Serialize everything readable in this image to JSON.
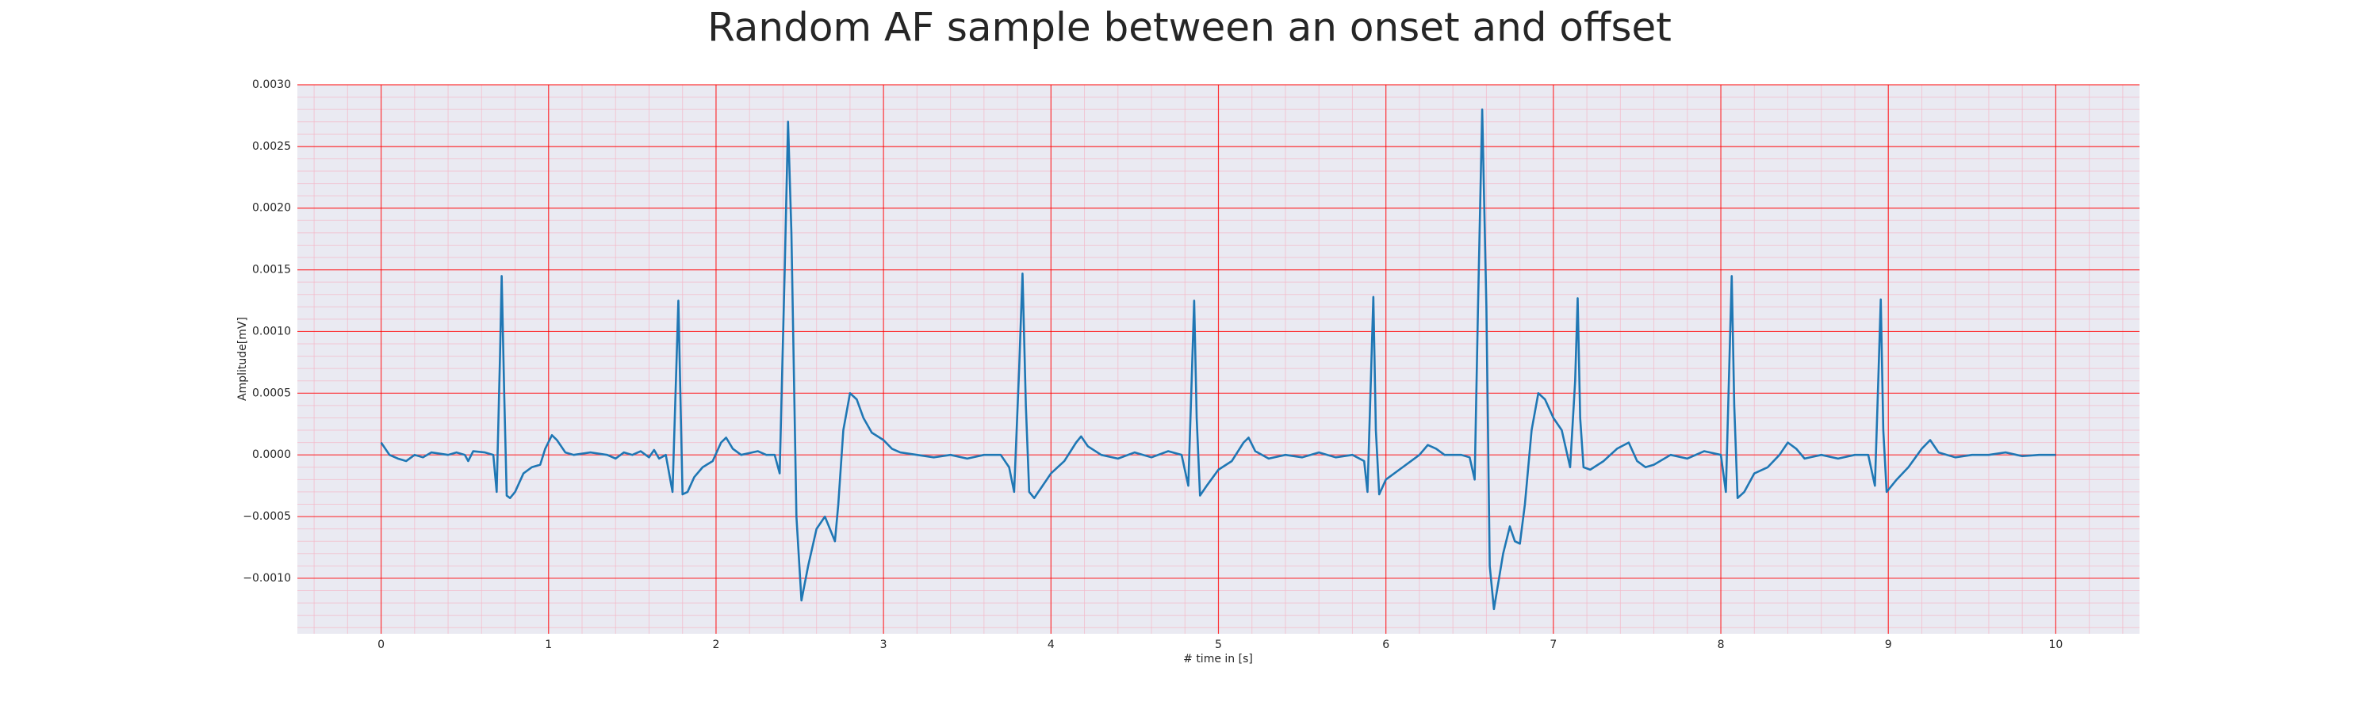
{
  "chart_data": {
    "type": "line",
    "title": "Random AF sample between an onset and offset",
    "x_label": "# time in [s]",
    "y_label": "Amplitude[mV]",
    "xlim": [
      -0.5,
      10.5
    ],
    "ylim": [
      -0.00145,
      0.003
    ],
    "xticks": [
      0,
      1,
      2,
      3,
      4,
      5,
      6,
      7,
      8,
      9,
      10
    ],
    "yticks": [
      {
        "value": -0.001,
        "label": "−0.0010"
      },
      {
        "value": -0.0005,
        "label": "−0.0005"
      },
      {
        "value": 0,
        "label": "0.0000"
      },
      {
        "value": 0.0005,
        "label": "0.0005"
      },
      {
        "value": 0.001,
        "label": "0.0010"
      },
      {
        "value": 0.0015,
        "label": "0.0015"
      },
      {
        "value": 0.002,
        "label": "0.0020"
      },
      {
        "value": 0.0025,
        "label": "0.0025"
      },
      {
        "value": 0.003,
        "label": "0.0030"
      }
    ],
    "grid": true,
    "grid_color": "#ff0000",
    "minor_grid": true,
    "minor_grid_color": "#f4b8c8",
    "background": "#eaeaf2",
    "series": [
      {
        "color": "#1f77b4",
        "x": [
          0.0,
          0.05,
          0.1,
          0.15,
          0.2,
          0.25,
          0.3,
          0.4,
          0.45,
          0.5,
          0.52,
          0.55,
          0.62,
          0.67,
          0.69,
          0.71,
          0.72,
          0.735,
          0.75,
          0.77,
          0.8,
          0.85,
          0.9,
          0.95,
          0.98,
          1.02,
          1.05,
          1.1,
          1.15,
          1.25,
          1.35,
          1.4,
          1.45,
          1.5,
          1.55,
          1.6,
          1.63,
          1.66,
          1.7,
          1.74,
          1.765,
          1.775,
          1.79,
          1.8,
          1.83,
          1.87,
          1.92,
          1.98,
          2.03,
          2.06,
          2.1,
          2.15,
          2.25,
          2.3,
          2.35,
          2.38,
          2.41,
          2.43,
          2.45,
          2.48,
          2.51,
          2.55,
          2.6,
          2.65,
          2.68,
          2.71,
          2.73,
          2.76,
          2.8,
          2.84,
          2.88,
          2.93,
          3.0,
          3.05,
          3.1,
          3.2,
          3.3,
          3.4,
          3.5,
          3.6,
          3.7,
          3.75,
          3.78,
          3.81,
          3.83,
          3.85,
          3.87,
          3.9,
          3.95,
          4.0,
          4.08,
          4.15,
          4.18,
          4.22,
          4.3,
          4.4,
          4.5,
          4.6,
          4.7,
          4.78,
          4.82,
          4.84,
          4.855,
          4.87,
          4.89,
          4.93,
          5.0,
          5.08,
          5.15,
          5.18,
          5.22,
          5.3,
          5.4,
          5.5,
          5.6,
          5.7,
          5.8,
          5.87,
          5.89,
          5.91,
          5.925,
          5.94,
          5.96,
          6.0,
          6.1,
          6.2,
          6.25,
          6.3,
          6.35,
          6.45,
          6.5,
          6.53,
          6.55,
          6.575,
          6.6,
          6.62,
          6.645,
          6.7,
          6.74,
          6.77,
          6.8,
          6.83,
          6.87,
          6.91,
          6.95,
          7.0,
          7.05,
          7.1,
          7.13,
          7.145,
          7.16,
          7.18,
          7.22,
          7.3,
          7.38,
          7.45,
          7.5,
          7.55,
          7.6,
          7.7,
          7.8,
          7.9,
          8.0,
          8.03,
          8.05,
          8.065,
          8.08,
          8.1,
          8.14,
          8.2,
          8.28,
          8.35,
          8.4,
          8.45,
          8.5,
          8.6,
          8.7,
          8.8,
          8.88,
          8.92,
          8.94,
          8.955,
          8.97,
          8.99,
          9.05,
          9.12,
          9.2,
          9.25,
          9.3,
          9.4,
          9.5,
          9.6,
          9.7,
          9.8,
          9.9,
          10.0
        ],
        "values": [
          0.0001,
          0.0,
          -3e-05,
          -5e-05,
          0.0,
          -2e-05,
          2e-05,
          0.0,
          2e-05,
          0.0,
          -5e-05,
          3e-05,
          2e-05,
          0.0,
          -0.0003,
          0.0008,
          0.00145,
          0.0005,
          -0.00033,
          -0.00035,
          -0.0003,
          -0.00015,
          -0.0001,
          -8e-05,
          5e-05,
          0.00016,
          0.00012,
          2e-05,
          0.0,
          2e-05,
          0.0,
          -3e-05,
          2e-05,
          0.0,
          3e-05,
          -2e-05,
          4e-05,
          -3e-05,
          0.0,
          -0.0003,
          0.0008,
          0.00125,
          0.0003,
          -0.00032,
          -0.0003,
          -0.00018,
          -0.0001,
          -5e-05,
          0.0001,
          0.00014,
          5e-05,
          0.0,
          3e-05,
          0.0,
          0.0,
          -0.00015,
          0.0015,
          0.0027,
          0.0018,
          -0.0005,
          -0.00118,
          -0.0009,
          -0.0006,
          -0.0005,
          -0.0006,
          -0.0007,
          -0.0004,
          0.0002,
          0.0005,
          0.00045,
          0.0003,
          0.00018,
          0.00012,
          5e-05,
          2e-05,
          0.0,
          -2e-05,
          0.0,
          -3e-05,
          0.0,
          0.0,
          -0.0001,
          -0.0003,
          0.0007,
          0.00147,
          0.0004,
          -0.0003,
          -0.00035,
          -0.00025,
          -0.00015,
          -5e-05,
          0.0001,
          0.00015,
          7e-05,
          0.0,
          -3e-05,
          2e-05,
          -2e-05,
          3e-05,
          0.0,
          -0.00025,
          0.0006,
          0.00125,
          0.0003,
          -0.00033,
          -0.00025,
          -0.00012,
          -5e-05,
          0.0001,
          0.00014,
          3e-05,
          -3e-05,
          0.0,
          -2e-05,
          2e-05,
          -2e-05,
          0.0,
          -5e-05,
          -0.0003,
          0.0006,
          0.00128,
          0.0002,
          -0.00032,
          -0.0002,
          -0.0001,
          0.0,
          8e-05,
          5e-05,
          0.0,
          0.0,
          -2e-05,
          -0.0002,
          0.0012,
          0.0028,
          0.0012,
          -0.0009,
          -0.00125,
          -0.0008,
          -0.00058,
          -0.0007,
          -0.00072,
          -0.0004,
          0.0002,
          0.0005,
          0.00045,
          0.0003,
          0.0002,
          -0.0001,
          0.0006,
          0.00127,
          0.0003,
          -0.0001,
          -0.00012,
          -5e-05,
          5e-05,
          0.0001,
          -5e-05,
          -0.0001,
          -8e-05,
          0.0,
          -3e-05,
          3e-05,
          0.0,
          -0.0003,
          0.0007,
          0.00145,
          0.0004,
          -0.00035,
          -0.0003,
          -0.00015,
          -0.0001,
          0.0,
          0.0001,
          5e-05,
          -3e-05,
          0.0,
          -3e-05,
          0.0,
          0.0,
          -0.00025,
          0.0006,
          0.00126,
          0.0002,
          -0.0003,
          -0.0002,
          -0.0001,
          5e-05,
          0.00012,
          2e-05,
          -2e-05,
          0.0,
          0.0,
          2e-05,
          -1e-05,
          0.0,
          0.0
        ]
      }
    ]
  }
}
